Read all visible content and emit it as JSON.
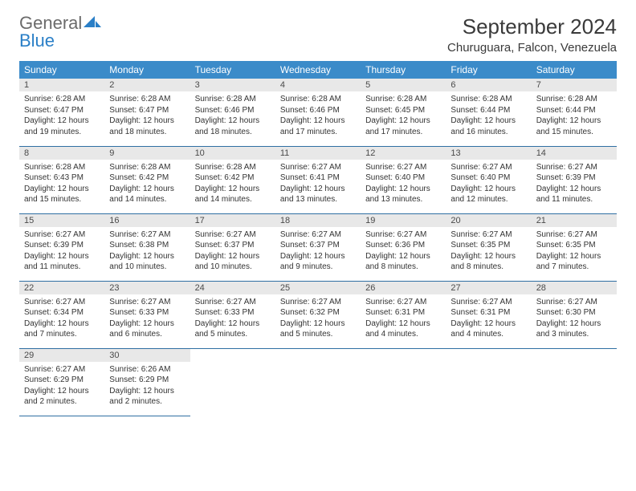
{
  "brand": {
    "general": "General",
    "blue": "Blue"
  },
  "title": "September 2024",
  "location": "Churuguara, Falcon, Venezuela",
  "colors": {
    "header_bg": "#3b8bc9",
    "header_text": "#ffffff",
    "daynum_bg": "#e8e8e8",
    "row_border": "#2f6fa3",
    "brand_gray": "#6b6b6b",
    "brand_blue": "#2a7fc7"
  },
  "day_headers": [
    "Sunday",
    "Monday",
    "Tuesday",
    "Wednesday",
    "Thursday",
    "Friday",
    "Saturday"
  ],
  "weeks": [
    [
      {
        "num": "1",
        "sunrise": "Sunrise: 6:28 AM",
        "sunset": "Sunset: 6:47 PM",
        "daylight": "Daylight: 12 hours and 19 minutes."
      },
      {
        "num": "2",
        "sunrise": "Sunrise: 6:28 AM",
        "sunset": "Sunset: 6:47 PM",
        "daylight": "Daylight: 12 hours and 18 minutes."
      },
      {
        "num": "3",
        "sunrise": "Sunrise: 6:28 AM",
        "sunset": "Sunset: 6:46 PM",
        "daylight": "Daylight: 12 hours and 18 minutes."
      },
      {
        "num": "4",
        "sunrise": "Sunrise: 6:28 AM",
        "sunset": "Sunset: 6:46 PM",
        "daylight": "Daylight: 12 hours and 17 minutes."
      },
      {
        "num": "5",
        "sunrise": "Sunrise: 6:28 AM",
        "sunset": "Sunset: 6:45 PM",
        "daylight": "Daylight: 12 hours and 17 minutes."
      },
      {
        "num": "6",
        "sunrise": "Sunrise: 6:28 AM",
        "sunset": "Sunset: 6:44 PM",
        "daylight": "Daylight: 12 hours and 16 minutes."
      },
      {
        "num": "7",
        "sunrise": "Sunrise: 6:28 AM",
        "sunset": "Sunset: 6:44 PM",
        "daylight": "Daylight: 12 hours and 15 minutes."
      }
    ],
    [
      {
        "num": "8",
        "sunrise": "Sunrise: 6:28 AM",
        "sunset": "Sunset: 6:43 PM",
        "daylight": "Daylight: 12 hours and 15 minutes."
      },
      {
        "num": "9",
        "sunrise": "Sunrise: 6:28 AM",
        "sunset": "Sunset: 6:42 PM",
        "daylight": "Daylight: 12 hours and 14 minutes."
      },
      {
        "num": "10",
        "sunrise": "Sunrise: 6:28 AM",
        "sunset": "Sunset: 6:42 PM",
        "daylight": "Daylight: 12 hours and 14 minutes."
      },
      {
        "num": "11",
        "sunrise": "Sunrise: 6:27 AM",
        "sunset": "Sunset: 6:41 PM",
        "daylight": "Daylight: 12 hours and 13 minutes."
      },
      {
        "num": "12",
        "sunrise": "Sunrise: 6:27 AM",
        "sunset": "Sunset: 6:40 PM",
        "daylight": "Daylight: 12 hours and 13 minutes."
      },
      {
        "num": "13",
        "sunrise": "Sunrise: 6:27 AM",
        "sunset": "Sunset: 6:40 PM",
        "daylight": "Daylight: 12 hours and 12 minutes."
      },
      {
        "num": "14",
        "sunrise": "Sunrise: 6:27 AM",
        "sunset": "Sunset: 6:39 PM",
        "daylight": "Daylight: 12 hours and 11 minutes."
      }
    ],
    [
      {
        "num": "15",
        "sunrise": "Sunrise: 6:27 AM",
        "sunset": "Sunset: 6:39 PM",
        "daylight": "Daylight: 12 hours and 11 minutes."
      },
      {
        "num": "16",
        "sunrise": "Sunrise: 6:27 AM",
        "sunset": "Sunset: 6:38 PM",
        "daylight": "Daylight: 12 hours and 10 minutes."
      },
      {
        "num": "17",
        "sunrise": "Sunrise: 6:27 AM",
        "sunset": "Sunset: 6:37 PM",
        "daylight": "Daylight: 12 hours and 10 minutes."
      },
      {
        "num": "18",
        "sunrise": "Sunrise: 6:27 AM",
        "sunset": "Sunset: 6:37 PM",
        "daylight": "Daylight: 12 hours and 9 minutes."
      },
      {
        "num": "19",
        "sunrise": "Sunrise: 6:27 AM",
        "sunset": "Sunset: 6:36 PM",
        "daylight": "Daylight: 12 hours and 8 minutes."
      },
      {
        "num": "20",
        "sunrise": "Sunrise: 6:27 AM",
        "sunset": "Sunset: 6:35 PM",
        "daylight": "Daylight: 12 hours and 8 minutes."
      },
      {
        "num": "21",
        "sunrise": "Sunrise: 6:27 AM",
        "sunset": "Sunset: 6:35 PM",
        "daylight": "Daylight: 12 hours and 7 minutes."
      }
    ],
    [
      {
        "num": "22",
        "sunrise": "Sunrise: 6:27 AM",
        "sunset": "Sunset: 6:34 PM",
        "daylight": "Daylight: 12 hours and 7 minutes."
      },
      {
        "num": "23",
        "sunrise": "Sunrise: 6:27 AM",
        "sunset": "Sunset: 6:33 PM",
        "daylight": "Daylight: 12 hours and 6 minutes."
      },
      {
        "num": "24",
        "sunrise": "Sunrise: 6:27 AM",
        "sunset": "Sunset: 6:33 PM",
        "daylight": "Daylight: 12 hours and 5 minutes."
      },
      {
        "num": "25",
        "sunrise": "Sunrise: 6:27 AM",
        "sunset": "Sunset: 6:32 PM",
        "daylight": "Daylight: 12 hours and 5 minutes."
      },
      {
        "num": "26",
        "sunrise": "Sunrise: 6:27 AM",
        "sunset": "Sunset: 6:31 PM",
        "daylight": "Daylight: 12 hours and 4 minutes."
      },
      {
        "num": "27",
        "sunrise": "Sunrise: 6:27 AM",
        "sunset": "Sunset: 6:31 PM",
        "daylight": "Daylight: 12 hours and 4 minutes."
      },
      {
        "num": "28",
        "sunrise": "Sunrise: 6:27 AM",
        "sunset": "Sunset: 6:30 PM",
        "daylight": "Daylight: 12 hours and 3 minutes."
      }
    ],
    [
      {
        "num": "29",
        "sunrise": "Sunrise: 6:27 AM",
        "sunset": "Sunset: 6:29 PM",
        "daylight": "Daylight: 12 hours and 2 minutes."
      },
      {
        "num": "30",
        "sunrise": "Sunrise: 6:26 AM",
        "sunset": "Sunset: 6:29 PM",
        "daylight": "Daylight: 12 hours and 2 minutes."
      },
      null,
      null,
      null,
      null,
      null
    ]
  ]
}
